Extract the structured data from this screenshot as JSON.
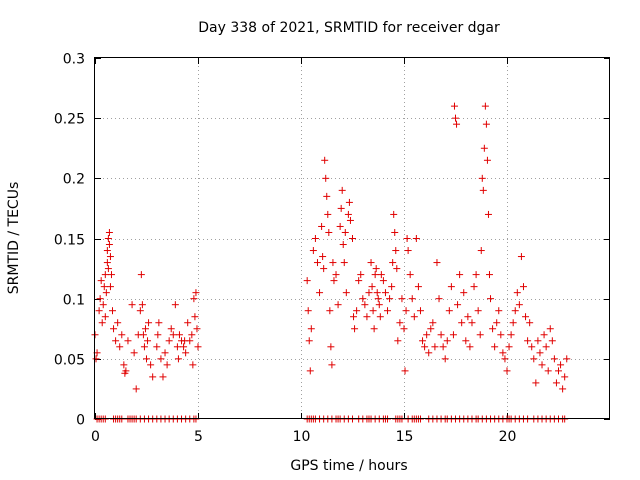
{
  "chart_data": {
    "type": "scatter",
    "title": "Day 338 of 2021, SRMTID for receiver dgar",
    "xlabel": "GPS time / hours",
    "ylabel": "SRMTID / TECUs",
    "xlim": [
      0,
      25
    ],
    "ylim": [
      0,
      0.3
    ],
    "x_ticks": [
      0,
      5,
      10,
      15,
      20
    ],
    "x_tick_labels": [
      "0",
      "5",
      "10",
      "15",
      "20"
    ],
    "y_ticks": [
      0,
      0.05,
      0.1,
      0.15,
      0.2,
      0.25,
      0.3
    ],
    "y_tick_labels": [
      "0",
      "0.05",
      "0.1",
      "0.15",
      "0.2",
      "0.25",
      "0.3"
    ],
    "grid": true,
    "marker": "+",
    "marker_color": "#e00000",
    "series": [
      {
        "name": "SRMTID",
        "points": [
          [
            0.0,
            0.07
          ],
          [
            0.05,
            0.05
          ],
          [
            0.1,
            0.055
          ],
          [
            0.2,
            0.09
          ],
          [
            0.25,
            0.1
          ],
          [
            0.3,
            0.115
          ],
          [
            0.35,
            0.08
          ],
          [
            0.4,
            0.095
          ],
          [
            0.45,
            0.11
          ],
          [
            0.5,
            0.12
          ],
          [
            0.5,
            0.085
          ],
          [
            0.55,
            0.105
          ],
          [
            0.6,
            0.13
          ],
          [
            0.6,
            0.14
          ],
          [
            0.65,
            0.15
          ],
          [
            0.65,
            0.125
          ],
          [
            0.7,
            0.145
          ],
          [
            0.7,
            0.155
          ],
          [
            0.75,
            0.135
          ],
          [
            0.75,
            0.11
          ],
          [
            0.8,
            0.12
          ],
          [
            0.85,
            0.09
          ],
          [
            0.9,
            0.075
          ],
          [
            1.0,
            0.065
          ],
          [
            1.1,
            0.08
          ],
          [
            1.2,
            0.06
          ],
          [
            1.3,
            0.07
          ],
          [
            1.4,
            0.045
          ],
          [
            1.45,
            0.038
          ],
          [
            1.5,
            0.04
          ],
          [
            1.6,
            0.065
          ],
          [
            1.8,
            0.095
          ],
          [
            1.9,
            0.055
          ],
          [
            2.0,
            0.025
          ],
          [
            2.1,
            0.07
          ],
          [
            2.2,
            0.09
          ],
          [
            2.25,
            0.12
          ],
          [
            2.3,
            0.095
          ],
          [
            2.35,
            0.07
          ],
          [
            2.4,
            0.06
          ],
          [
            2.45,
            0.075
          ],
          [
            2.5,
            0.05
          ],
          [
            2.55,
            0.065
          ],
          [
            2.6,
            0.08
          ],
          [
            2.7,
            0.045
          ],
          [
            2.8,
            0.035
          ],
          [
            3.0,
            0.06
          ],
          [
            3.05,
            0.07
          ],
          [
            3.1,
            0.08
          ],
          [
            3.2,
            0.05
          ],
          [
            3.3,
            0.035
          ],
          [
            3.4,
            0.055
          ],
          [
            3.5,
            0.045
          ],
          [
            3.6,
            0.065
          ],
          [
            3.7,
            0.075
          ],
          [
            3.8,
            0.07
          ],
          [
            3.9,
            0.095
          ],
          [
            4.0,
            0.06
          ],
          [
            4.05,
            0.05
          ],
          [
            4.1,
            0.07
          ],
          [
            4.2,
            0.065
          ],
          [
            4.3,
            0.06
          ],
          [
            4.35,
            0.065
          ],
          [
            4.4,
            0.055
          ],
          [
            4.5,
            0.08
          ],
          [
            4.6,
            0.065
          ],
          [
            4.7,
            0.07
          ],
          [
            4.75,
            0.045
          ],
          [
            4.8,
            0.1
          ],
          [
            4.85,
            0.085
          ],
          [
            4.9,
            0.105
          ],
          [
            4.95,
            0.075
          ],
          [
            5.0,
            0.06
          ],
          [
            10.3,
            0.115
          ],
          [
            10.35,
            0.09
          ],
          [
            10.4,
            0.065
          ],
          [
            10.45,
            0.04
          ],
          [
            10.5,
            0.075
          ],
          [
            10.6,
            0.14
          ],
          [
            10.7,
            0.15
          ],
          [
            10.8,
            0.13
          ],
          [
            10.9,
            0.105
          ],
          [
            11.0,
            0.16
          ],
          [
            11.05,
            0.135
          ],
          [
            11.1,
            0.125
          ],
          [
            11.15,
            0.215
          ],
          [
            11.2,
            0.2
          ],
          [
            11.25,
            0.185
          ],
          [
            11.3,
            0.17
          ],
          [
            11.35,
            0.155
          ],
          [
            11.4,
            0.09
          ],
          [
            11.45,
            0.06
          ],
          [
            11.5,
            0.045
          ],
          [
            11.55,
            0.13
          ],
          [
            11.6,
            0.115
          ],
          [
            11.7,
            0.12
          ],
          [
            11.8,
            0.095
          ],
          [
            11.9,
            0.16
          ],
          [
            11.95,
            0.175
          ],
          [
            12.0,
            0.19
          ],
          [
            12.05,
            0.145
          ],
          [
            12.1,
            0.13
          ],
          [
            12.15,
            0.155
          ],
          [
            12.2,
            0.105
          ],
          [
            12.3,
            0.17
          ],
          [
            12.35,
            0.18
          ],
          [
            12.4,
            0.165
          ],
          [
            12.5,
            0.15
          ],
          [
            12.55,
            0.085
          ],
          [
            12.6,
            0.075
          ],
          [
            12.7,
            0.09
          ],
          [
            12.8,
            0.115
          ],
          [
            12.9,
            0.12
          ],
          [
            13.0,
            0.1
          ],
          [
            13.1,
            0.095
          ],
          [
            13.2,
            0.085
          ],
          [
            13.3,
            0.105
          ],
          [
            13.4,
            0.13
          ],
          [
            13.45,
            0.11
          ],
          [
            13.5,
            0.09
          ],
          [
            13.55,
            0.075
          ],
          [
            13.6,
            0.12
          ],
          [
            13.65,
            0.125
          ],
          [
            13.7,
            0.105
          ],
          [
            13.75,
            0.1
          ],
          [
            13.8,
            0.095
          ],
          [
            13.85,
            0.085
          ],
          [
            13.9,
            0.12
          ],
          [
            14.0,
            0.115
          ],
          [
            14.1,
            0.105
          ],
          [
            14.2,
            0.09
          ],
          [
            14.3,
            0.1
          ],
          [
            14.4,
            0.11
          ],
          [
            14.45,
            0.13
          ],
          [
            14.5,
            0.17
          ],
          [
            14.55,
            0.155
          ],
          [
            14.6,
            0.14
          ],
          [
            14.65,
            0.125
          ],
          [
            14.7,
            0.065
          ],
          [
            14.8,
            0.08
          ],
          [
            14.9,
            0.1
          ],
          [
            15.0,
            0.075
          ],
          [
            15.05,
            0.04
          ],
          [
            15.1,
            0.09
          ],
          [
            15.15,
            0.15
          ],
          [
            15.2,
            0.14
          ],
          [
            15.3,
            0.12
          ],
          [
            15.4,
            0.1
          ],
          [
            15.5,
            0.085
          ],
          [
            15.6,
            0.15
          ],
          [
            15.7,
            0.11
          ],
          [
            15.8,
            0.09
          ],
          [
            15.9,
            0.065
          ],
          [
            16.0,
            0.06
          ],
          [
            16.1,
            0.07
          ],
          [
            16.2,
            0.055
          ],
          [
            16.3,
            0.075
          ],
          [
            16.4,
            0.08
          ],
          [
            16.5,
            0.06
          ],
          [
            16.6,
            0.13
          ],
          [
            16.7,
            0.1
          ],
          [
            16.8,
            0.07
          ],
          [
            16.9,
            0.06
          ],
          [
            17.0,
            0.05
          ],
          [
            17.1,
            0.065
          ],
          [
            17.2,
            0.09
          ],
          [
            17.3,
            0.11
          ],
          [
            17.4,
            0.07
          ],
          [
            17.45,
            0.26
          ],
          [
            17.5,
            0.25
          ],
          [
            17.55,
            0.245
          ],
          [
            17.6,
            0.095
          ],
          [
            17.7,
            0.12
          ],
          [
            17.8,
            0.08
          ],
          [
            17.9,
            0.105
          ],
          [
            18.0,
            0.065
          ],
          [
            18.1,
            0.085
          ],
          [
            18.2,
            0.06
          ],
          [
            18.3,
            0.08
          ],
          [
            18.4,
            0.11
          ],
          [
            18.5,
            0.12
          ],
          [
            18.6,
            0.09
          ],
          [
            18.7,
            0.07
          ],
          [
            18.75,
            0.14
          ],
          [
            18.8,
            0.2
          ],
          [
            18.85,
            0.19
          ],
          [
            18.9,
            0.225
          ],
          [
            18.95,
            0.26
          ],
          [
            19.0,
            0.245
          ],
          [
            19.05,
            0.215
          ],
          [
            19.1,
            0.17
          ],
          [
            19.15,
            0.12
          ],
          [
            19.2,
            0.1
          ],
          [
            19.3,
            0.075
          ],
          [
            19.4,
            0.06
          ],
          [
            19.5,
            0.08
          ],
          [
            19.6,
            0.09
          ],
          [
            19.7,
            0.07
          ],
          [
            19.8,
            0.055
          ],
          [
            19.9,
            0.05
          ],
          [
            20.0,
            0.04
          ],
          [
            20.1,
            0.06
          ],
          [
            20.2,
            0.07
          ],
          [
            20.3,
            0.08
          ],
          [
            20.4,
            0.09
          ],
          [
            20.5,
            0.105
          ],
          [
            20.6,
            0.095
          ],
          [
            20.7,
            0.135
          ],
          [
            20.8,
            0.11
          ],
          [
            20.9,
            0.085
          ],
          [
            21.0,
            0.065
          ],
          [
            21.1,
            0.08
          ],
          [
            21.2,
            0.06
          ],
          [
            21.3,
            0.05
          ],
          [
            21.4,
            0.03
          ],
          [
            21.5,
            0.065
          ],
          [
            21.6,
            0.055
          ],
          [
            21.7,
            0.045
          ],
          [
            21.8,
            0.07
          ],
          [
            21.9,
            0.06
          ],
          [
            22.0,
            0.04
          ],
          [
            22.1,
            0.075
          ],
          [
            22.2,
            0.065
          ],
          [
            22.3,
            0.05
          ],
          [
            22.4,
            0.03
          ],
          [
            22.5,
            0.04
          ],
          [
            22.6,
            0.045
          ],
          [
            22.7,
            0.025
          ],
          [
            22.8,
            0.035
          ],
          [
            22.9,
            0.05
          ]
        ],
        "zero_points_x": [
          0.1,
          0.2,
          0.3,
          0.4,
          0.5,
          0.9,
          1.0,
          1.1,
          1.2,
          1.3,
          1.6,
          1.7,
          1.8,
          1.9,
          2.0,
          2.2,
          2.4,
          2.6,
          2.8,
          3.0,
          3.2,
          3.4,
          3.6,
          3.8,
          4.0,
          4.2,
          4.4,
          4.6,
          4.8,
          4.9,
          10.3,
          10.4,
          10.5,
          10.6,
          10.7,
          10.9,
          11.1,
          11.3,
          11.5,
          11.7,
          11.8,
          11.9,
          12.1,
          12.3,
          12.5,
          12.8,
          13.0,
          13.2,
          13.3,
          13.4,
          13.6,
          13.8,
          14.0,
          14.1,
          14.2,
          14.6,
          14.7,
          14.8,
          14.9,
          15.2,
          15.4,
          15.5,
          15.6,
          15.7,
          15.8,
          16.2,
          16.4,
          16.6,
          16.8,
          17.0,
          17.1,
          17.3,
          17.5,
          17.7,
          17.9,
          18.1,
          18.3,
          18.5,
          18.6,
          18.8,
          19.0,
          19.2,
          19.4,
          19.6,
          19.8,
          20.0,
          20.1,
          20.2,
          20.4,
          20.6,
          20.8,
          21.0,
          21.3,
          21.5,
          21.7,
          21.9,
          22.1,
          22.3,
          22.5,
          22.7,
          22.8
        ]
      }
    ]
  }
}
